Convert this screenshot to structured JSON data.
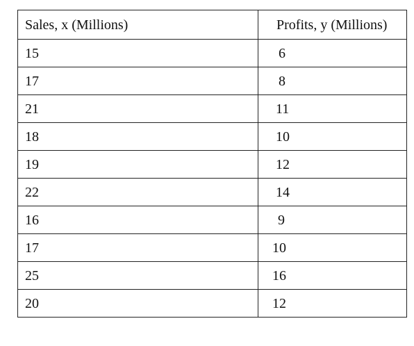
{
  "table": {
    "headers": [
      "Sales, x (Millions)",
      "Profits, y (Millions)"
    ],
    "rows": [
      [
        "15",
        "6"
      ],
      [
        "17",
        "8"
      ],
      [
        "21",
        "11"
      ],
      [
        "18",
        "10"
      ],
      [
        "19",
        "12"
      ],
      [
        "22",
        "14"
      ],
      [
        "16",
        "9"
      ],
      [
        "17",
        "10"
      ],
      [
        "25",
        "16"
      ],
      [
        "20",
        "12"
      ]
    ]
  }
}
